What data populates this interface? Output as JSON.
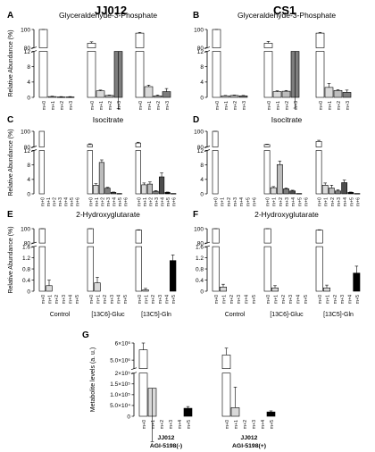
{
  "column_titles": [
    "JJ012",
    "CS1"
  ],
  "y_label_top": "Relative Abundance (%)",
  "group_labels": [
    "Control",
    "[13C6]-Gluc",
    "[13C5]-Gln"
  ],
  "colors": {
    "m0": "#ffffff",
    "m1": "#d9d9d9",
    "m2": "#bcbcbc",
    "m3": "#7d7d7d",
    "m4": "#4d4d4d",
    "m5": "#000000",
    "m6": "#1a1a1a"
  },
  "chart_data": [
    {
      "type": "bar",
      "panel": "A",
      "title": "Glyceraldehyde-3-Phosphate",
      "ylabel": "Relative Abundance (%)",
      "ylim": [
        0,
        100
      ],
      "axis_break": [
        12,
        80
      ],
      "lower_ticks": [
        0,
        4,
        8,
        12
      ],
      "upper_ticks": [
        80,
        100
      ],
      "groups": [
        "Control",
        "[13C6]-Gluc",
        "[13C5]-Gln"
      ],
      "categories": [
        "m+0",
        "m+1",
        "m+2",
        "m+3"
      ],
      "values": [
        [
          100,
          0.2,
          0.1,
          0.1
        ],
        [
          85,
          1.7,
          0.5,
          12
        ],
        [
          96,
          2.8,
          0.4,
          1.5
        ]
      ],
      "errors": [
        [
          0.3,
          0.1,
          0.1,
          0.1
        ],
        [
          1.5,
          0.2,
          0.1,
          1.5
        ],
        [
          0.8,
          0.4,
          0.2,
          0.8
        ]
      ]
    },
    {
      "type": "bar",
      "panel": "B",
      "title": "Glyceraldehyde-3-Phosphate",
      "ylabel": "",
      "ylim": [
        0,
        100
      ],
      "axis_break": [
        12,
        80
      ],
      "lower_ticks": [
        0,
        4,
        8,
        12
      ],
      "upper_ticks": [
        80,
        100
      ],
      "groups": [
        "Control",
        "[13C6]-Gluc",
        "[13C5]-Gln"
      ],
      "categories": [
        "m+0",
        "m+1",
        "m+2",
        "m+3"
      ],
      "values": [
        [
          100,
          0.4,
          0.5,
          0.4
        ],
        [
          85,
          1.5,
          1.6,
          12
        ],
        [
          96,
          2.6,
          1.8,
          1.3
        ]
      ],
      "errors": [
        [
          0.3,
          0.1,
          0.1,
          0.1
        ],
        [
          2.0,
          0.2,
          0.2,
          2.2
        ],
        [
          0.8,
          1.0,
          0.2,
          0.6
        ]
      ]
    },
    {
      "type": "bar",
      "panel": "C",
      "title": "Isocitrate",
      "ylabel": "Relative Abundance (%)",
      "ylim": [
        0,
        100
      ],
      "axis_break": [
        12,
        80
      ],
      "lower_ticks": [
        0,
        4,
        8,
        12
      ],
      "upper_ticks": [
        80,
        100
      ],
      "groups": [
        "Control",
        "[13C6]-Gluc",
        "[13C5]-Gln"
      ],
      "categories": [
        "m+0",
        "m+1",
        "m+2",
        "m+3",
        "m+4",
        "m+5",
        "m+6"
      ],
      "values": [
        [
          100,
          0,
          0,
          0,
          0,
          0,
          0
        ],
        [
          83,
          2.4,
          8.7,
          1.6,
          0.4,
          0.1,
          0
        ],
        [
          85,
          2.5,
          2.7,
          0.7,
          4.7,
          0.4,
          0.1
        ]
      ],
      "errors": [
        [
          0,
          0,
          0,
          0,
          0,
          0,
          0
        ],
        [
          1.0,
          0.4,
          0.7,
          0.2,
          0.1,
          0,
          0
        ],
        [
          1.0,
          0.5,
          0.6,
          0.2,
          1.1,
          0.1,
          0
        ]
      ]
    },
    {
      "type": "bar",
      "panel": "D",
      "title": "Isocitrate",
      "ylabel": "",
      "ylim": [
        0,
        100
      ],
      "axis_break": [
        12,
        80
      ],
      "lower_ticks": [
        0,
        4,
        8,
        12
      ],
      "upper_ticks": [
        80,
        100
      ],
      "groups": [
        "Control",
        "[13C6]-Gluc",
        "[13C5]-Gln"
      ],
      "categories": [
        "m+0",
        "m+1",
        "m+2",
        "m+3",
        "m+4",
        "m+5",
        "m+6"
      ],
      "values": [
        [
          100,
          0,
          0,
          0,
          0,
          0,
          0
        ],
        [
          83,
          1.7,
          8.1,
          1.4,
          0.8,
          0.1,
          0
        ],
        [
          87,
          2.4,
          1.6,
          0.8,
          3.1,
          0.4,
          0.1
        ]
      ],
      "errors": [
        [
          3.0,
          0,
          0,
          0,
          0,
          0,
          0
        ],
        [
          0.5,
          0.3,
          1.0,
          0.2,
          0.2,
          0,
          0
        ],
        [
          1.5,
          0.6,
          0.8,
          0.3,
          0.7,
          0.1,
          0
        ]
      ]
    },
    {
      "type": "bar",
      "panel": "E",
      "title": "2-Hydroxyglutarate",
      "ylabel": "Relative Abundance (%)",
      "ylim": [
        0,
        100
      ],
      "axis_break": [
        1.6,
        80
      ],
      "lower_ticks": [
        0.0,
        0.4,
        0.8,
        1.2,
        1.6
      ],
      "upper_ticks": [
        80,
        100
      ],
      "groups": [
        "Control",
        "[13C6]-Gluc",
        "[13C5]-Gln"
      ],
      "categories": [
        "m+0",
        "m+1",
        "m+2",
        "m+3",
        "m+4",
        "m+5"
      ],
      "values": [
        [
          100,
          0.2,
          0,
          0,
          0,
          0
        ],
        [
          100,
          0.3,
          0,
          0,
          0,
          0
        ],
        [
          98,
          0.05,
          0,
          0,
          0,
          1.1
        ]
      ],
      "errors": [
        [
          0.3,
          0.2,
          0,
          0,
          0,
          0
        ],
        [
          0.3,
          0.2,
          0,
          0,
          0,
          0
        ],
        [
          0.5,
          0.05,
          0,
          0,
          0,
          0.2
        ]
      ]
    },
    {
      "type": "bar",
      "panel": "F",
      "title": "2-Hydroxyglutarate",
      "ylabel": "",
      "ylim": [
        0,
        100
      ],
      "axis_break": [
        1.6,
        80
      ],
      "lower_ticks": [
        0.0,
        0.4,
        0.8,
        1.2,
        1.6
      ],
      "upper_ticks": [
        80,
        100
      ],
      "groups": [
        "Control",
        "[13C6]-Gluc",
        "[13C5]-Gln"
      ],
      "categories": [
        "m+0",
        "m+1",
        "m+2",
        "m+3",
        "m+4",
        "m+5"
      ],
      "values": [
        [
          100,
          0.15,
          0,
          0,
          0,
          0
        ],
        [
          100,
          0.12,
          0,
          0,
          0,
          0
        ],
        [
          98,
          0.12,
          0,
          0,
          0,
          0.65
        ]
      ],
      "errors": [
        [
          0.3,
          0.1,
          0,
          0,
          0,
          0
        ],
        [
          0.3,
          0.08,
          0,
          0,
          0,
          0
        ],
        [
          0.5,
          0.1,
          0,
          0,
          0,
          0.25
        ]
      ]
    },
    {
      "type": "bar",
      "panel": "G",
      "title": "",
      "ylabel": "Metabolite levels (a. u.)",
      "ylim": [
        0,
        6000000
      ],
      "axis_break": [
        200000,
        4500000
      ],
      "lower_ticks": [
        0,
        50000,
        100000,
        150000,
        200000
      ],
      "lower_tick_labels": [
        "0",
        "5.0×10⁴",
        "1.0×10⁵",
        "1.5×10⁵",
        "2×10⁵"
      ],
      "upper_ticks": [
        5000000,
        6000000
      ],
      "upper_tick_labels": [
        "5.0×10⁶",
        "6×10⁶"
      ],
      "groups": [
        "JJ012\nAGI-5198(-)",
        "JJ012\nAGI-5198(+)"
      ],
      "categories": [
        "m+0",
        "m+1",
        "m+2",
        "m+3",
        "m+4",
        "m+5"
      ],
      "values": [
        [
          5600000,
          130000,
          0,
          0,
          0,
          37000
        ],
        [
          5300000,
          40000,
          0,
          0,
          0,
          20000
        ]
      ],
      "errors": [
        [
          400000,
          100000,
          0,
          0,
          0,
          8000
        ],
        [
          400000,
          95000,
          0,
          0,
          0,
          5000
        ]
      ]
    }
  ]
}
